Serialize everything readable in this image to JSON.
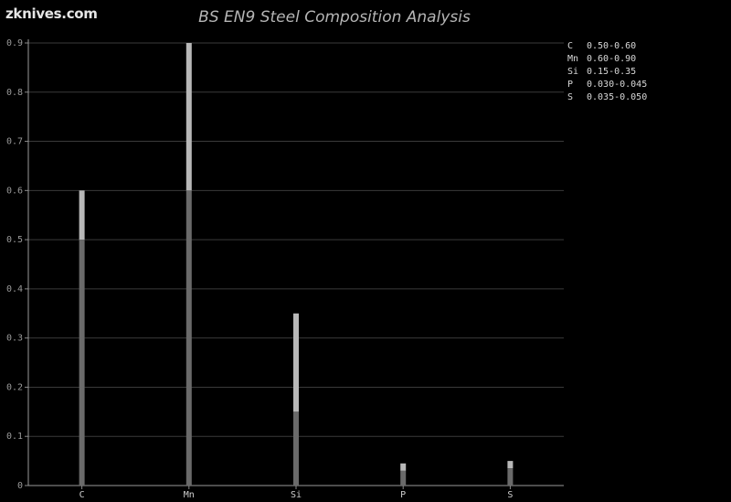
{
  "brand": "zknives.com",
  "chart_data": {
    "type": "bar",
    "title": "BS EN9 Steel Composition Analysis",
    "xlabel": "",
    "ylabel": "",
    "ylim": [
      0,
      0.9
    ],
    "yticks": [
      "0",
      "0.1",
      "0.2",
      "0.3",
      "0.4",
      "0.5",
      "0.6",
      "0.7",
      "0.8",
      "0.9"
    ],
    "categories": [
      "C",
      "Mn",
      "Si",
      "P",
      "S"
    ],
    "series": [
      {
        "values": [
          0.5,
          0.6,
          0.15,
          0.03,
          0.035
        ]
      },
      {
        "values": [
          0.6,
          0.9,
          0.35,
          0.045,
          0.05
        ]
      }
    ],
    "legend": [
      {
        "element": "C",
        "range": "0.50-0.60"
      },
      {
        "element": "Mn",
        "range": "0.60-0.90"
      },
      {
        "element": "Si",
        "range": "0.15-0.35"
      },
      {
        "element": "P",
        "range": "0.030-0.045"
      },
      {
        "element": "S",
        "range": "0.035-0.050"
      }
    ],
    "legend_position": "top-right",
    "grid": true,
    "colors": {
      "background": "#000000",
      "grid": "#3a3a3a",
      "min_bar": "#6a6a6a",
      "max_bar": "#b8b8b8"
    }
  }
}
